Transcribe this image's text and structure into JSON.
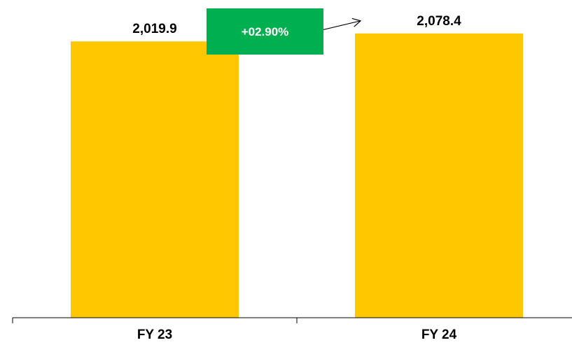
{
  "chart_data": {
    "type": "bar",
    "categories": [
      "FY 23",
      "FY 24"
    ],
    "values": [
      2019.9,
      2078.4
    ],
    "value_labels": [
      "2,019.9",
      "2,078.4"
    ],
    "title": "",
    "xlabel": "",
    "ylabel": "",
    "ylim": [
      0,
      2200
    ],
    "grid": false,
    "legend": "none",
    "bar_color": "#FFC700",
    "annotation": {
      "text": "+02.90%",
      "color": "#00B050",
      "text_color": "#FFFFFF",
      "from_category": "FY 23",
      "to_category": "FY 24"
    }
  }
}
